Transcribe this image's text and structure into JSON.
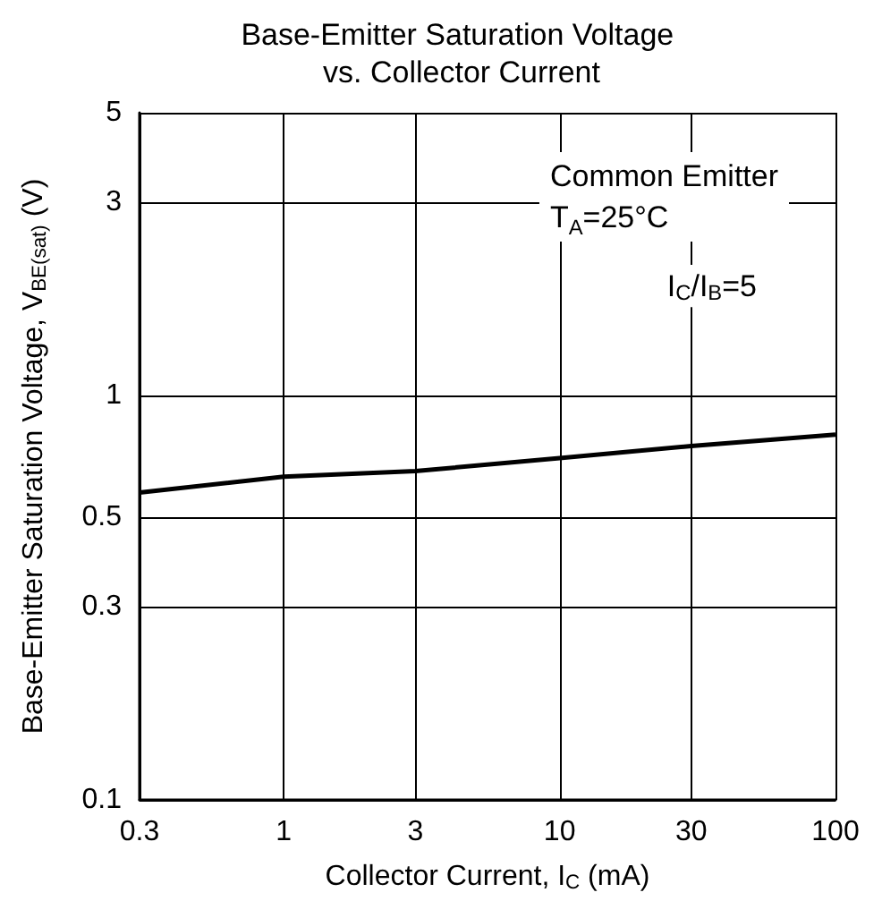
{
  "chart_data": {
    "type": "line",
    "title": "Base-Emitter Saturation Voltage vs. Collector Current",
    "xlabel": "Collector Current, I$_{C}$ (mA)",
    "ylabel": "Base-Emitter Saturation Voltage, V$_{BE(sat)}$ (V)",
    "annotations": [
      "Common Emitter",
      "T$_{A}$=25°C",
      "I$_{C}$/I$_{B}$=5"
    ],
    "x": [
      0.3,
      1,
      3,
      10,
      30,
      100
    ],
    "series": [
      {
        "color": "#000000",
        "values": [
          0.575,
          0.63,
          0.65,
          0.7,
          0.75,
          0.8
        ]
      }
    ],
    "log": "xy",
    "xlim": [
      0.3,
      100
    ],
    "xticks": [
      0.3,
      1,
      3,
      10,
      30,
      100
    ],
    "ylim": [
      0.1,
      5
    ],
    "yticks": [
      0.1,
      0.3,
      0.5,
      1,
      3,
      5
    ],
    "grid": true,
    "marker": "none",
    "line_style": "solid"
  }
}
